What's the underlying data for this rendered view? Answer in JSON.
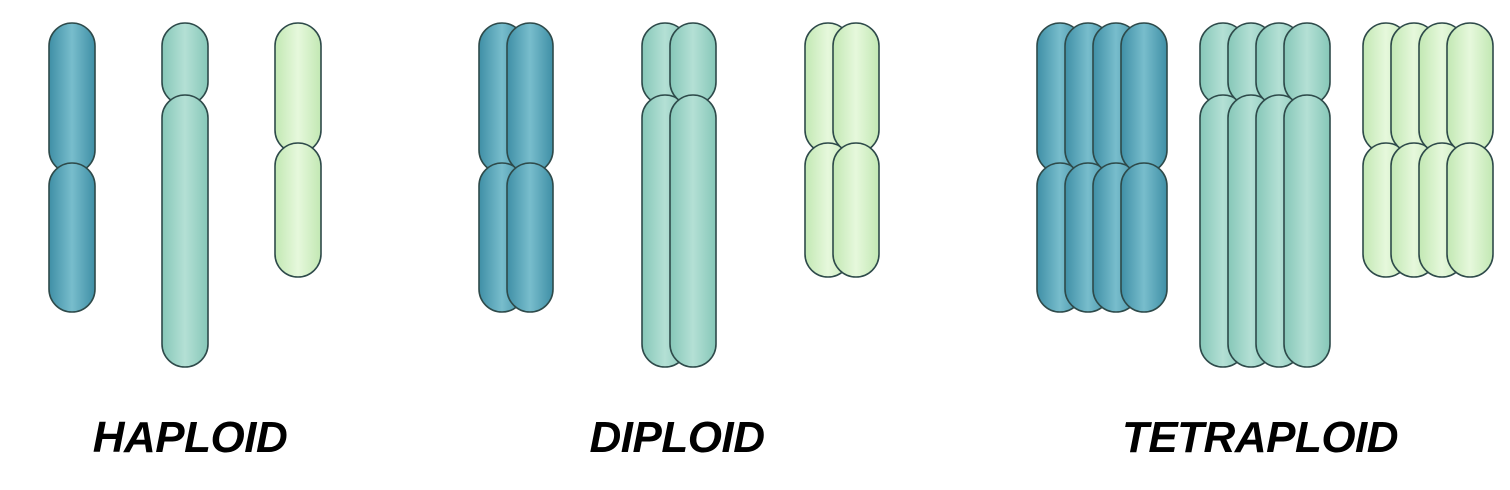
{
  "colors": {
    "blue": "#5ba9bd",
    "teal": "#9bd4c6",
    "light_green": "#d4f0c6",
    "outline": "#2e4a4a"
  },
  "groups": [
    {
      "id": "haploid",
      "label": "HAPLOID",
      "copies": 1,
      "chromosome_types": [
        "blue",
        "teal",
        "light_green"
      ]
    },
    {
      "id": "diploid",
      "label": "DIPLOID",
      "copies": 2,
      "chromosome_types": [
        "blue",
        "teal",
        "light_green"
      ]
    },
    {
      "id": "tetraploid",
      "label": "TETRAPLOID",
      "copies": 4,
      "chromosome_types": [
        "blue",
        "teal",
        "light_green"
      ]
    }
  ]
}
